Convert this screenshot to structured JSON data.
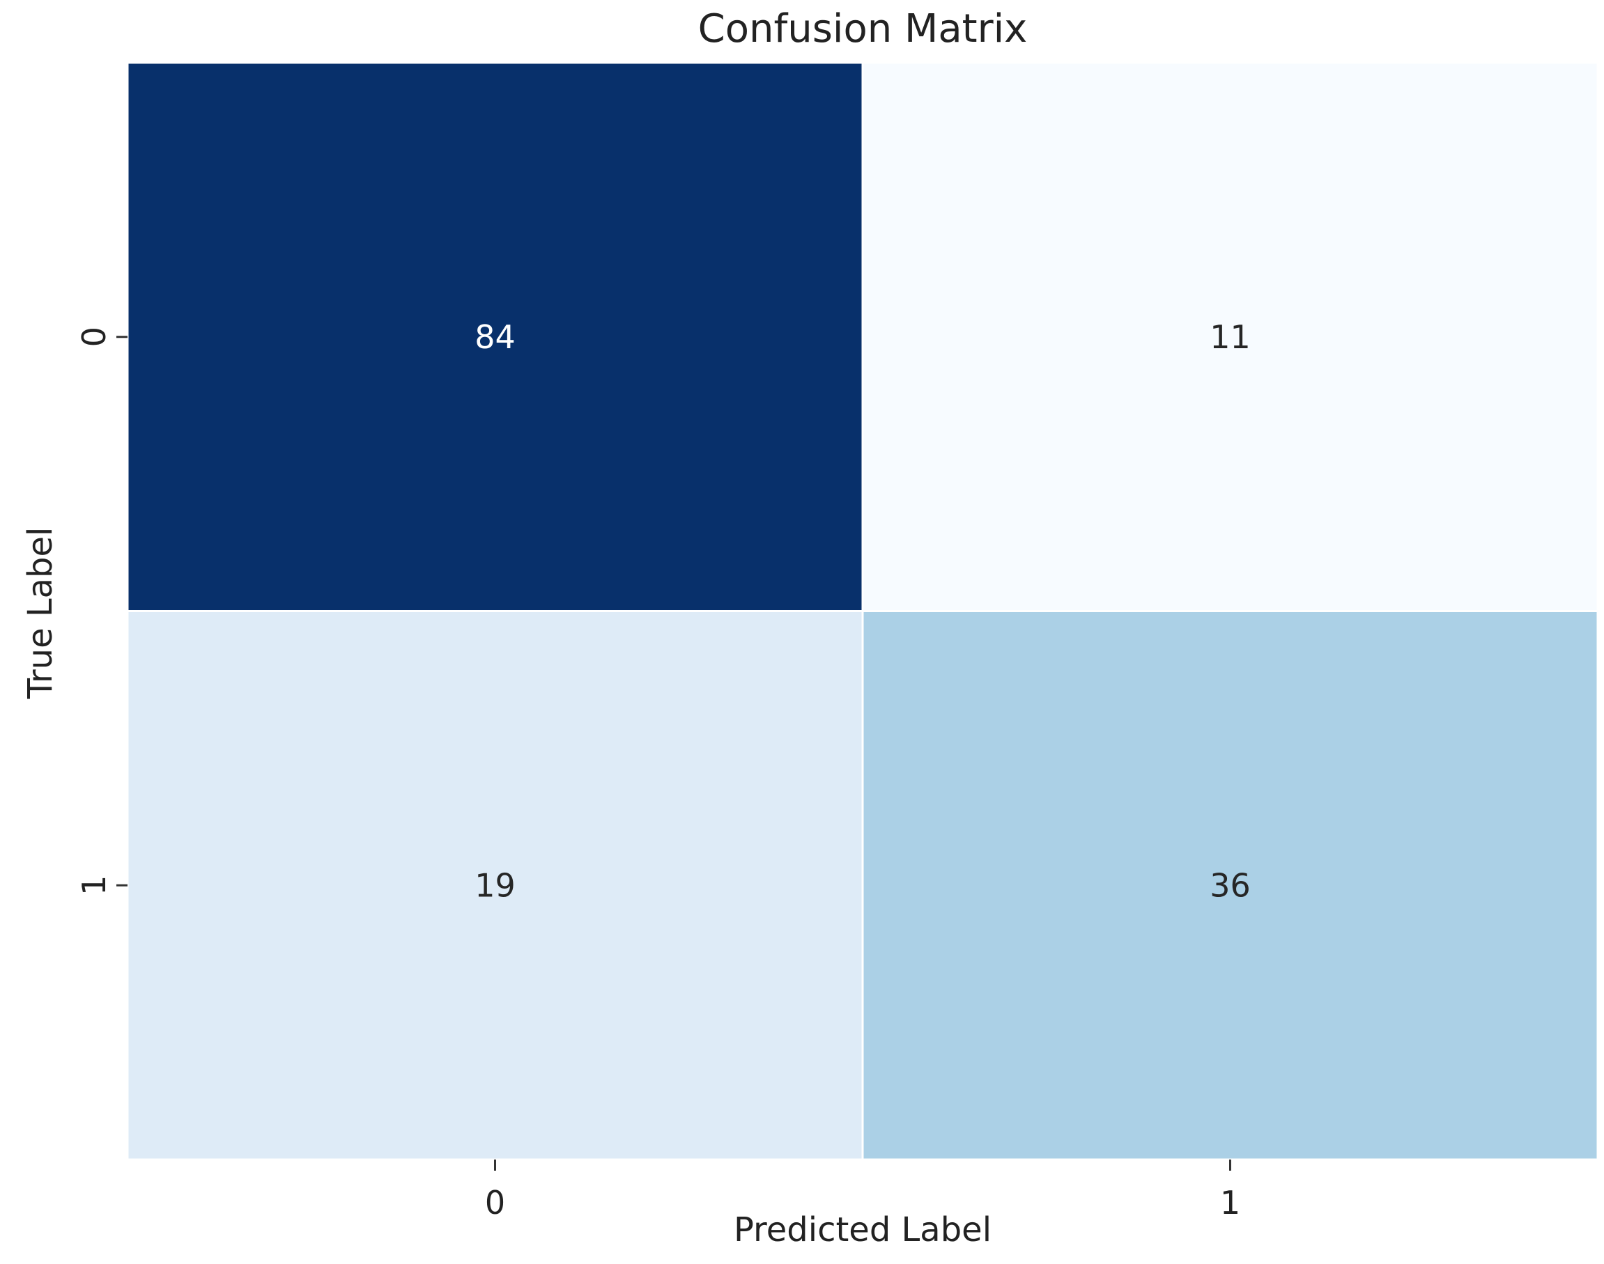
{
  "chart_data": {
    "type": "heatmap",
    "title": "Confusion Matrix",
    "xlabel": "Predicted Label",
    "ylabel": "True Label",
    "x_categories": [
      "0",
      "1"
    ],
    "y_categories": [
      "0",
      "1"
    ],
    "values": [
      [
        84,
        11
      ],
      [
        19,
        36
      ]
    ],
    "colormap": "Blues",
    "colorbar": false,
    "cell_colors": [
      [
        "#08306b",
        "#f7fbff"
      ],
      [
        "#deebf7",
        "#abd0e6"
      ]
    ],
    "annotation_colors": [
      [
        "#ffffff",
        "#262626"
      ],
      [
        "#262626",
        "#262626"
      ]
    ]
  }
}
